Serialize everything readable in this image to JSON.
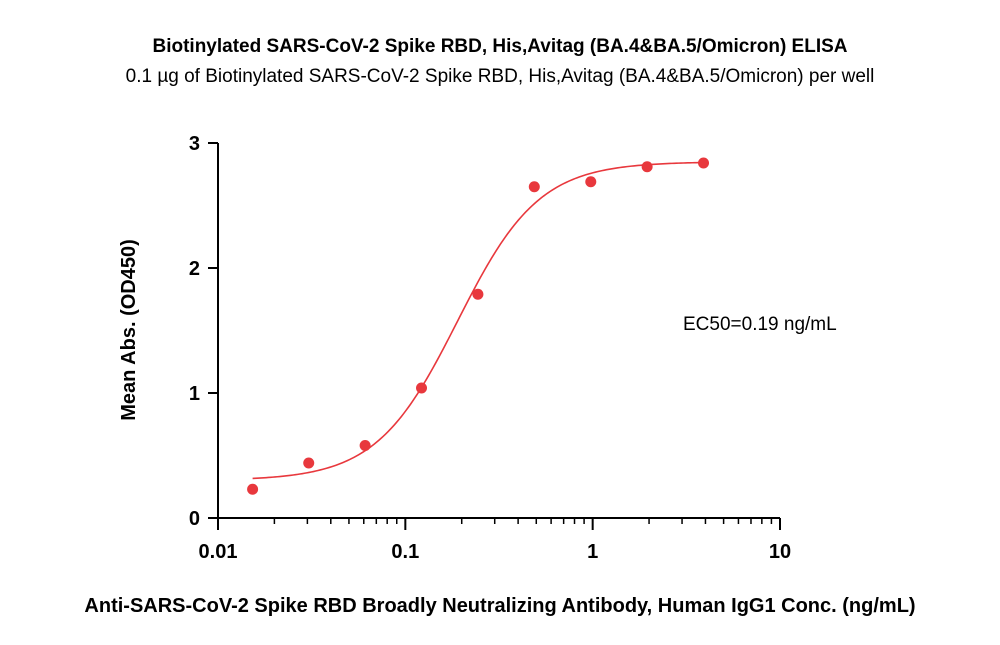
{
  "chart_data": {
    "type": "scatter",
    "title": "Biotinylated SARS-CoV-2 Spike RBD, His,Avitag (BA.4&BA.5/Omicron) ELISA",
    "subtitle": "0.1 µg of Biotinylated SARS-CoV-2 Spike RBD, His,Avitag (BA.4&BA.5/Omicron) per well",
    "xlabel": "Anti-SARS-CoV-2 Spike RBD Broadly Neutralizing Antibody, Human IgG1 Conc. (ng/mL)",
    "ylabel": "Mean Abs. (OD450)",
    "x_scale": "log",
    "xlim": [
      0.01,
      10
    ],
    "ylim": [
      0,
      3
    ],
    "x_ticks": [
      0.01,
      0.1,
      1,
      10
    ],
    "x_tick_labels": [
      "0.01",
      "0.1",
      "1",
      "10"
    ],
    "y_ticks": [
      0,
      1,
      2,
      3
    ],
    "y_tick_labels": [
      "0",
      "1",
      "2",
      "3"
    ],
    "series": [
      {
        "x": [
          0.0153,
          0.0305,
          0.061,
          0.122,
          0.244,
          0.488,
          0.977,
          1.953,
          3.906
        ],
        "y": [
          0.23,
          0.44,
          0.58,
          1.04,
          1.79,
          2.65,
          2.69,
          2.81,
          2.84
        ]
      }
    ],
    "fit": {
      "model": "4PL",
      "bottom": 0.3,
      "top": 2.85,
      "ec50": 0.19,
      "hill": 2.0
    },
    "annotation": "EC50=0.19 ng/mL",
    "color": "#e8383d",
    "grid": false
  }
}
